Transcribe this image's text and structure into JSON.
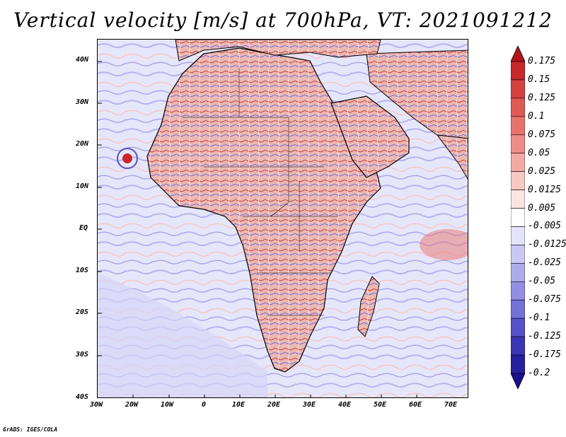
{
  "title": "Vertical velocity [m/s] at 700hPa, VT: 2021091212",
  "credit": "GrADS: IGES/COLA",
  "y_axis_labels": [
    "40N",
    "30N",
    "20N",
    "10N",
    "EQ",
    "10S",
    "20S",
    "30S",
    "40S"
  ],
  "x_axis_labels": [
    "30W",
    "20W",
    "10W",
    "0",
    "10E",
    "20E",
    "30E",
    "40E",
    "50E",
    "60E",
    "70E"
  ],
  "colorbar": {
    "labels": [
      "0.175",
      "0.15",
      "0.125",
      "0.1",
      "0.075",
      "0.05",
      "0.025",
      "0.0125",
      "0.005",
      "-0.005",
      "-0.0125",
      "-0.025",
      "-0.05",
      "-0.075",
      "-0.1",
      "-0.125",
      "-0.175",
      "-0.2"
    ],
    "colors": [
      "#b3141b",
      "#c8272c",
      "#d6403f",
      "#e05a55",
      "#e8736c",
      "#ee8d86",
      "#f3a9a2",
      "#f8c8c3",
      "#fbe4e1",
      "#ffffff",
      "#e4e3fa",
      "#c9c7f3",
      "#aeabec",
      "#918ee3",
      "#7471d8",
      "#5652c9",
      "#3b36b5",
      "#261fa0",
      "#1a0f8c"
    ]
  },
  "map": {
    "land_color": "#e9c9c5",
    "ocean_color": "#e6e6fb",
    "border_color": "#000000"
  }
}
